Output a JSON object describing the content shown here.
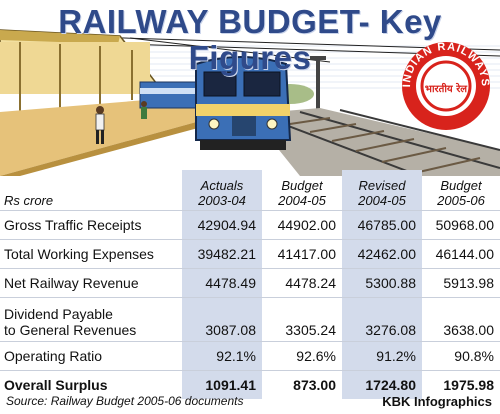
{
  "title": "RAILWAY BUDGET- Key Figures",
  "emblem": {
    "ring_text": "INDIAN RAILWAYS",
    "inner_text": "भारतीय रेल",
    "color": "#d8231c"
  },
  "table": {
    "unit_label": "Rs crore",
    "columns": [
      {
        "line1": "Actuals",
        "line2": "2003-04",
        "shaded": true
      },
      {
        "line1": "Budget",
        "line2": "2004-05",
        "shaded": false
      },
      {
        "line1": "Revised",
        "line2": "2004-05",
        "shaded": true
      },
      {
        "line1": "Budget",
        "line2": "2005-06",
        "shaded": false
      }
    ],
    "rows": [
      {
        "label": "Gross Traffic Receipts",
        "values": [
          "42904.94",
          "44902.00",
          "46785.00",
          "50968.00"
        ]
      },
      {
        "label": "Total Working Expenses",
        "values": [
          "39482.21",
          "41417.00",
          "42462.00",
          "46144.00"
        ]
      },
      {
        "label": "Net Railway Revenue",
        "values": [
          "4478.49",
          "4478.24",
          "5300.88",
          "5913.98"
        ]
      },
      {
        "label_line1": "Dividend Payable",
        "label_line2": "to General Revenues",
        "values": [
          "3087.08",
          "3305.24",
          "3276.08",
          "3638.00"
        ]
      },
      {
        "label": "Operating Ratio",
        "values": [
          "92.1%",
          "92.6%",
          "91.2%",
          "90.8%"
        ]
      },
      {
        "label": "Overall Surplus",
        "values": [
          "1091.41",
          "873.00",
          "1724.80",
          "1975.98"
        ],
        "bold": true
      }
    ]
  },
  "footer": {
    "source": "Source: Railway Budget 2005-06 documents",
    "credit": "KBK Infographics"
  },
  "colors": {
    "title": "#2f4a8a",
    "shade": "#d3dbeb",
    "train_body": "#3b6fb6",
    "platform": "#e6c27a"
  }
}
